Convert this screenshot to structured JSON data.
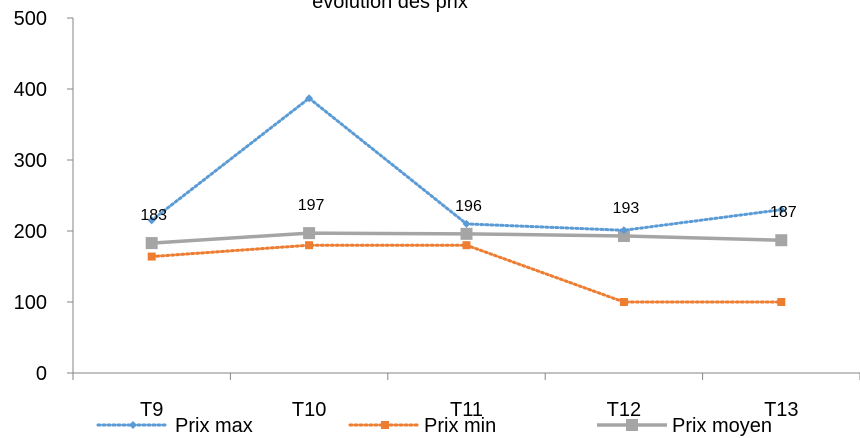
{
  "chart_data": {
    "type": "line",
    "title": "évolution des prix",
    "categories": [
      "T9",
      "T10",
      "T11",
      "T12",
      "T13"
    ],
    "ylim": [
      0,
      500
    ],
    "yticks": [
      0,
      100,
      200,
      300,
      400,
      500
    ],
    "grid": false,
    "legend_position": "bottom",
    "series": [
      {
        "name": "Prix max",
        "values": [
          215,
          387,
          210,
          201,
          230
        ],
        "color": "#5b9bd5",
        "line_style": "dotted",
        "marker": "diamond"
      },
      {
        "name": "Prix min",
        "values": [
          164,
          180,
          180,
          100,
          100
        ],
        "color": "#ed7d31",
        "line_style": "dotted",
        "marker": "square"
      },
      {
        "name": "Prix moyen",
        "values": [
          183,
          197,
          196,
          193,
          187
        ],
        "color": "#a5a5a5",
        "line_style": "solid",
        "marker": "square",
        "data_labels": [
          "183",
          "197",
          "196",
          "193",
          "187"
        ]
      }
    ]
  }
}
